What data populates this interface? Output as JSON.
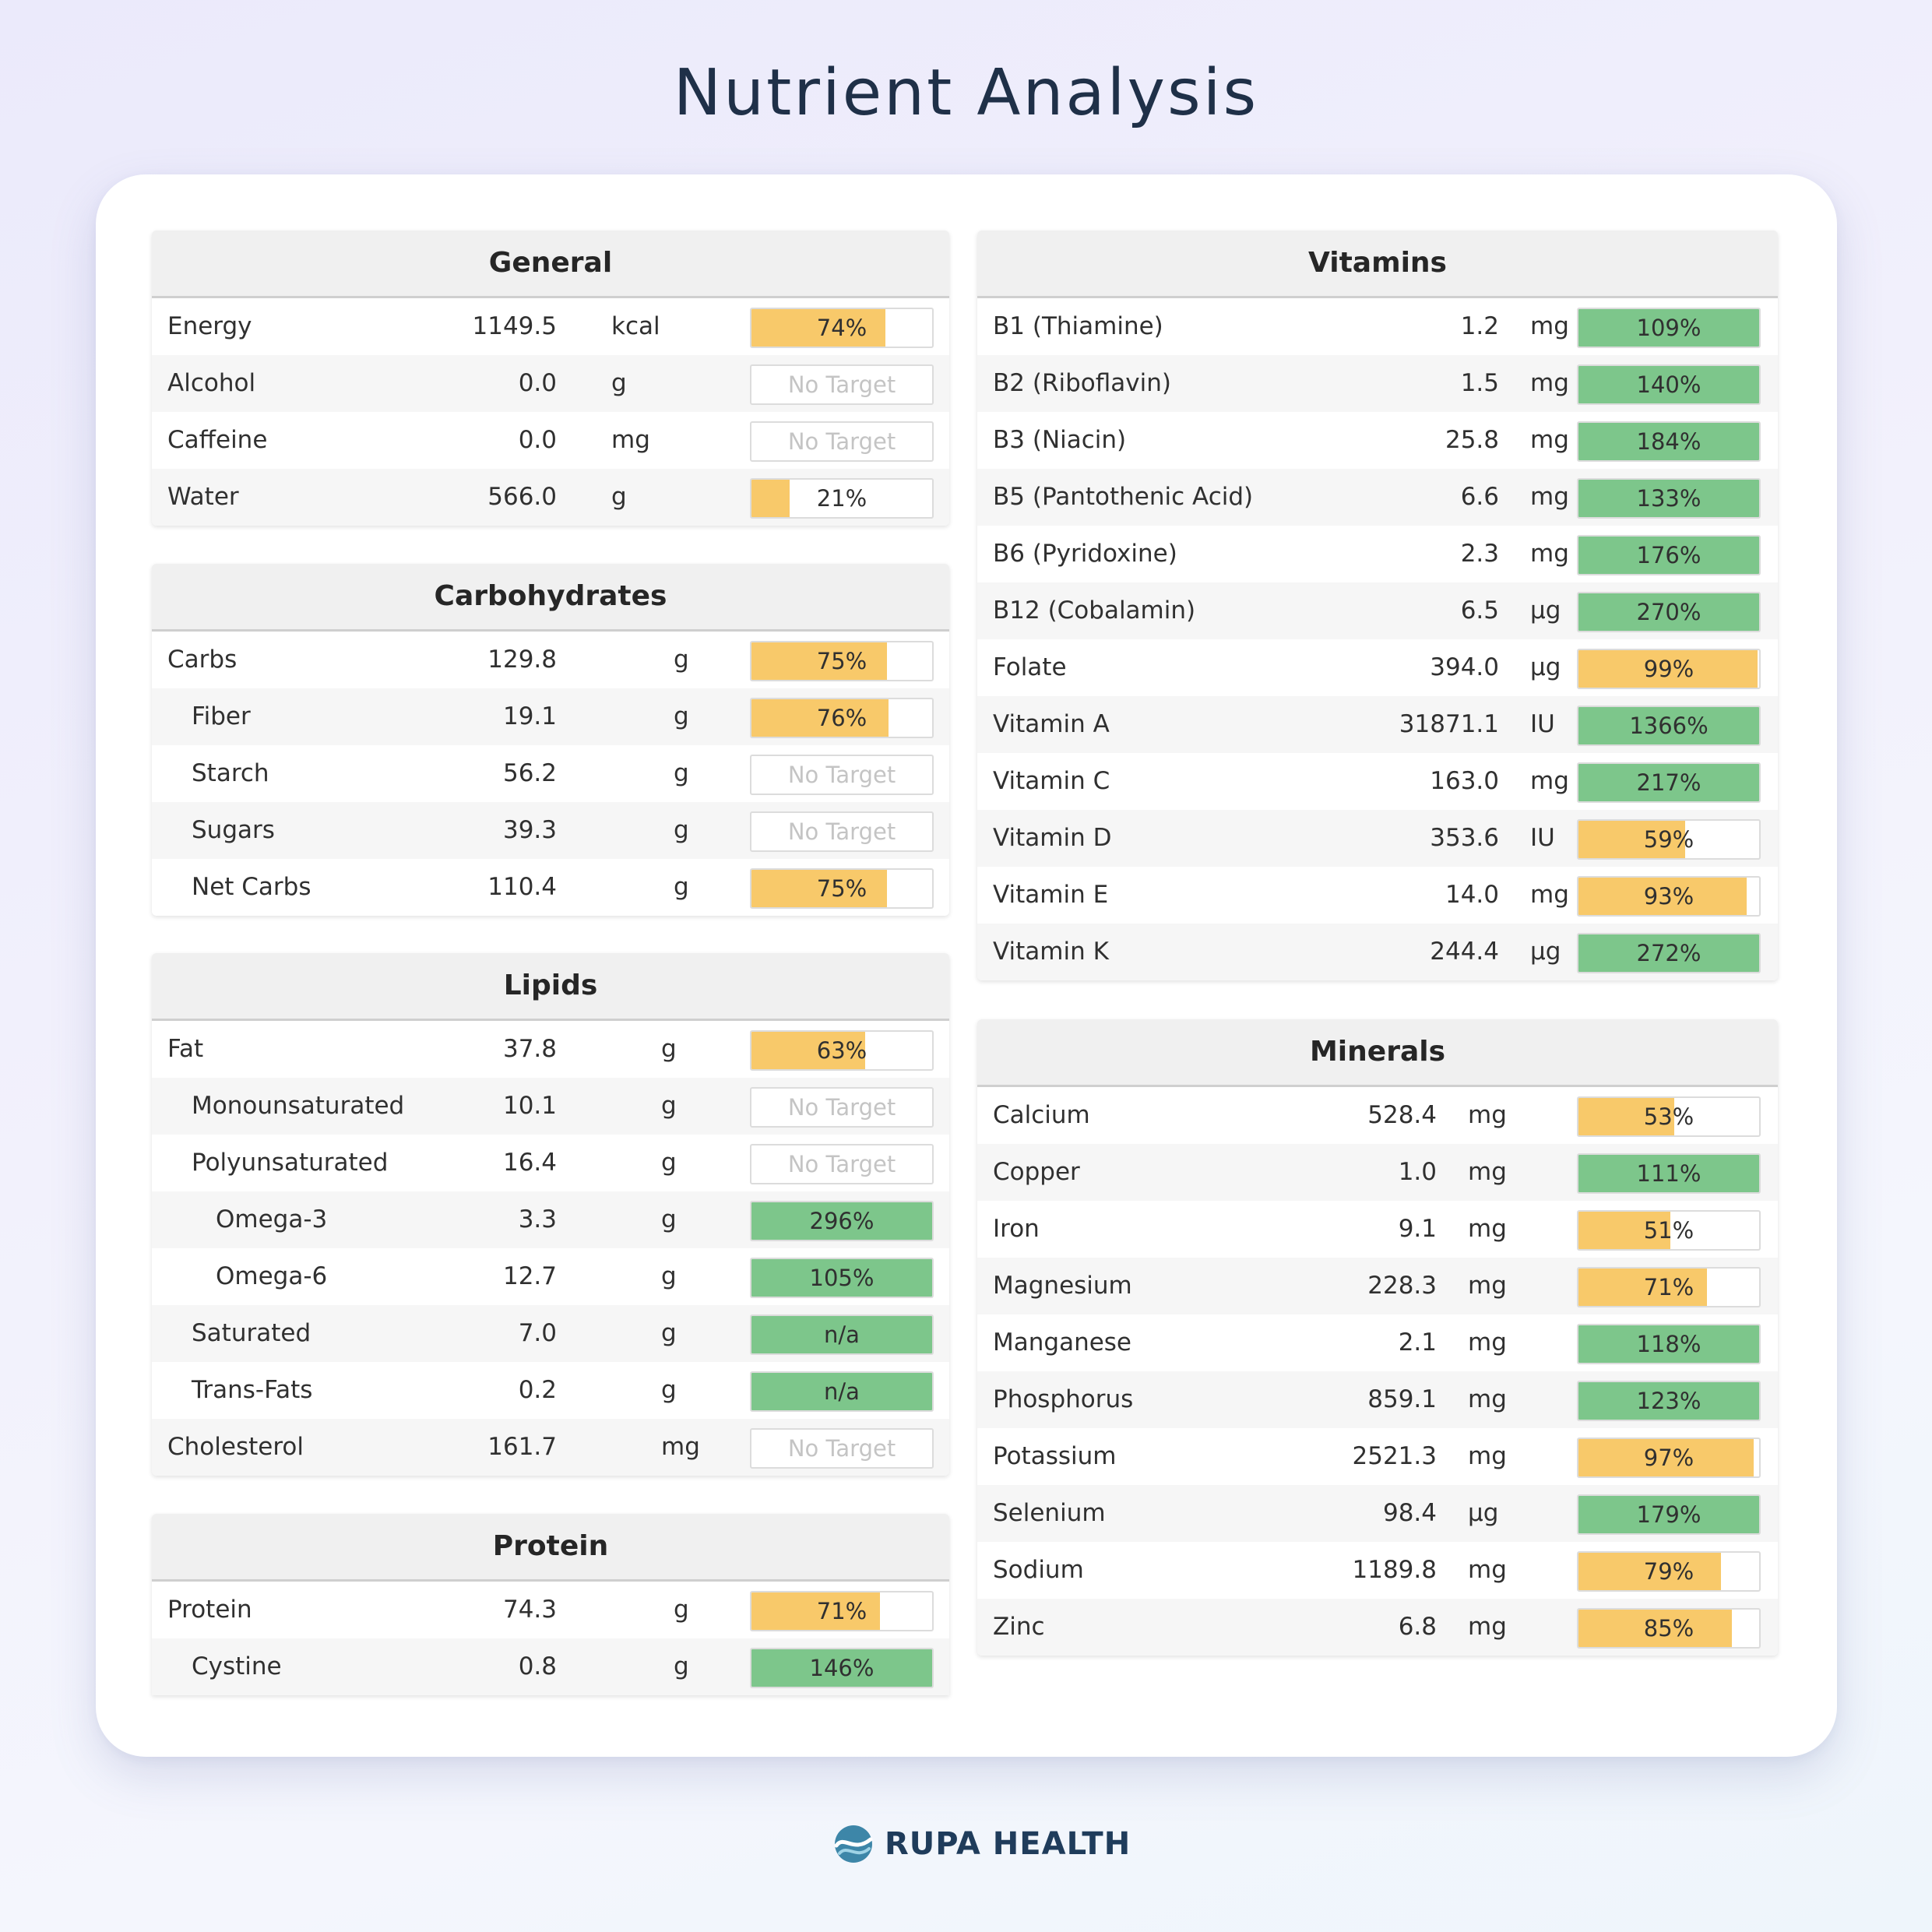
{
  "page_title": "Nutrient Analysis",
  "brand": {
    "name": "RUPA HEALTH",
    "logo_icon": "rupa-logo-icon"
  },
  "colors": {
    "below_target": "#f8c96a",
    "met_target": "#7dc68b",
    "no_target_text": "#c4c4c4"
  },
  "left_panels": [
    {
      "title": "General",
      "rows": [
        {
          "name": "Energy",
          "value": "1149.5",
          "unit": "kcal",
          "pct": "74%",
          "fill": 0.74,
          "status": "yellow"
        },
        {
          "name": "Alcohol",
          "value": "0.0",
          "unit": "g",
          "pct": "No Target",
          "fill": 0,
          "status": "none"
        },
        {
          "name": "Caffeine",
          "value": "0.0",
          "unit": "mg",
          "pct": "No Target",
          "fill": 0,
          "status": "none"
        },
        {
          "name": "Water",
          "value": "566.0",
          "unit": "g",
          "pct": "21%",
          "fill": 0.21,
          "status": "yellow"
        }
      ]
    },
    {
      "title": "Carbohydrates",
      "rows": [
        {
          "name": "Carbs",
          "value": "129.8",
          "unit": "g",
          "pct": "75%",
          "fill": 0.75,
          "status": "yellow",
          "indent": 0
        },
        {
          "name": "Fiber",
          "value": "19.1",
          "unit": "g",
          "pct": "76%",
          "fill": 0.76,
          "status": "yellow",
          "indent": 1
        },
        {
          "name": "Starch",
          "value": "56.2",
          "unit": "g",
          "pct": "No Target",
          "fill": 0,
          "status": "none",
          "indent": 1
        },
        {
          "name": "Sugars",
          "value": "39.3",
          "unit": "g",
          "pct": "No Target",
          "fill": 0,
          "status": "none",
          "indent": 1
        },
        {
          "name": "Net Carbs",
          "value": "110.4",
          "unit": "g",
          "pct": "75%",
          "fill": 0.75,
          "status": "yellow",
          "indent": 1
        }
      ]
    },
    {
      "title": "Lipids",
      "rows": [
        {
          "name": "Fat",
          "value": "37.8",
          "unit": "g",
          "pct": "63%",
          "fill": 0.63,
          "status": "yellow",
          "indent": 0
        },
        {
          "name": "Monounsaturated",
          "value": "10.1",
          "unit": "g",
          "pct": "No Target",
          "fill": 0,
          "status": "none",
          "indent": 1
        },
        {
          "name": "Polyunsaturated",
          "value": "16.4",
          "unit": "g",
          "pct": "No Target",
          "fill": 0,
          "status": "none",
          "indent": 1
        },
        {
          "name": "Omega-3",
          "value": "3.3",
          "unit": "g",
          "pct": "296%",
          "fill": 1,
          "status": "green",
          "indent": 2
        },
        {
          "name": "Omega-6",
          "value": "12.7",
          "unit": "g",
          "pct": "105%",
          "fill": 1,
          "status": "green",
          "indent": 2
        },
        {
          "name": "Saturated",
          "value": "7.0",
          "unit": "g",
          "pct": "n/a",
          "fill": 1,
          "status": "green",
          "indent": 1
        },
        {
          "name": "Trans-Fats",
          "value": "0.2",
          "unit": "g",
          "pct": "n/a",
          "fill": 1,
          "status": "green",
          "indent": 1
        },
        {
          "name": "Cholesterol",
          "value": "161.7",
          "unit": "mg",
          "pct": "No Target",
          "fill": 0,
          "status": "none",
          "indent": 0
        }
      ]
    },
    {
      "title": "Protein",
      "rows": [
        {
          "name": "Protein",
          "value": "74.3",
          "unit": "g",
          "pct": "71%",
          "fill": 0.71,
          "status": "yellow",
          "indent": 0
        },
        {
          "name": "Cystine",
          "value": "0.8",
          "unit": "g",
          "pct": "146%",
          "fill": 1,
          "status": "green",
          "indent": 1
        }
      ]
    }
  ],
  "right_panels": [
    {
      "title": "Vitamins",
      "rows": [
        {
          "name": "B1 (Thiamine)",
          "value": "1.2",
          "unit": "mg",
          "pct": "109%",
          "fill": 1,
          "status": "green"
        },
        {
          "name": "B2 (Riboflavin)",
          "value": "1.5",
          "unit": "mg",
          "pct": "140%",
          "fill": 1,
          "status": "green"
        },
        {
          "name": "B3 (Niacin)",
          "value": "25.8",
          "unit": "mg",
          "pct": "184%",
          "fill": 1,
          "status": "green"
        },
        {
          "name": "B5 (Pantothenic Acid)",
          "value": "6.6",
          "unit": "mg",
          "pct": "133%",
          "fill": 1,
          "status": "green"
        },
        {
          "name": "B6 (Pyridoxine)",
          "value": "2.3",
          "unit": "mg",
          "pct": "176%",
          "fill": 1,
          "status": "green"
        },
        {
          "name": "B12 (Cobalamin)",
          "value": "6.5",
          "unit": "µg",
          "pct": "270%",
          "fill": 1,
          "status": "green"
        },
        {
          "name": "Folate",
          "value": "394.0",
          "unit": "µg",
          "pct": "99%",
          "fill": 0.99,
          "status": "yellow"
        },
        {
          "name": "Vitamin A",
          "value": "31871.1",
          "unit": "IU",
          "pct": "1366%",
          "fill": 1,
          "status": "green"
        },
        {
          "name": "Vitamin C",
          "value": "163.0",
          "unit": "mg",
          "pct": "217%",
          "fill": 1,
          "status": "green"
        },
        {
          "name": "Vitamin D",
          "value": "353.6",
          "unit": "IU",
          "pct": "59%",
          "fill": 0.59,
          "status": "yellow"
        },
        {
          "name": "Vitamin E",
          "value": "14.0",
          "unit": "mg",
          "pct": "93%",
          "fill": 0.93,
          "status": "yellow"
        },
        {
          "name": "Vitamin K",
          "value": "244.4",
          "unit": "µg",
          "pct": "272%",
          "fill": 1,
          "status": "green"
        }
      ]
    },
    {
      "title": "Minerals",
      "rows": [
        {
          "name": "Calcium",
          "value": "528.4",
          "unit": "mg",
          "pct": "53%",
          "fill": 0.53,
          "status": "yellow"
        },
        {
          "name": "Copper",
          "value": "1.0",
          "unit": "mg",
          "pct": "111%",
          "fill": 1,
          "status": "green"
        },
        {
          "name": "Iron",
          "value": "9.1",
          "unit": "mg",
          "pct": "51%",
          "fill": 0.51,
          "status": "yellow"
        },
        {
          "name": "Magnesium",
          "value": "228.3",
          "unit": "mg",
          "pct": "71%",
          "fill": 0.71,
          "status": "yellow"
        },
        {
          "name": "Manganese",
          "value": "2.1",
          "unit": "mg",
          "pct": "118%",
          "fill": 1,
          "status": "green"
        },
        {
          "name": "Phosphorus",
          "value": "859.1",
          "unit": "mg",
          "pct": "123%",
          "fill": 1,
          "status": "green"
        },
        {
          "name": "Potassium",
          "value": "2521.3",
          "unit": "mg",
          "pct": "97%",
          "fill": 0.97,
          "status": "yellow"
        },
        {
          "name": "Selenium",
          "value": "98.4",
          "unit": "µg",
          "pct": "179%",
          "fill": 1,
          "status": "green"
        },
        {
          "name": "Sodium",
          "value": "1189.8",
          "unit": "mg",
          "pct": "79%",
          "fill": 0.79,
          "status": "yellow"
        },
        {
          "name": "Zinc",
          "value": "6.8",
          "unit": "mg",
          "pct": "85%",
          "fill": 0.85,
          "status": "yellow"
        }
      ]
    }
  ]
}
